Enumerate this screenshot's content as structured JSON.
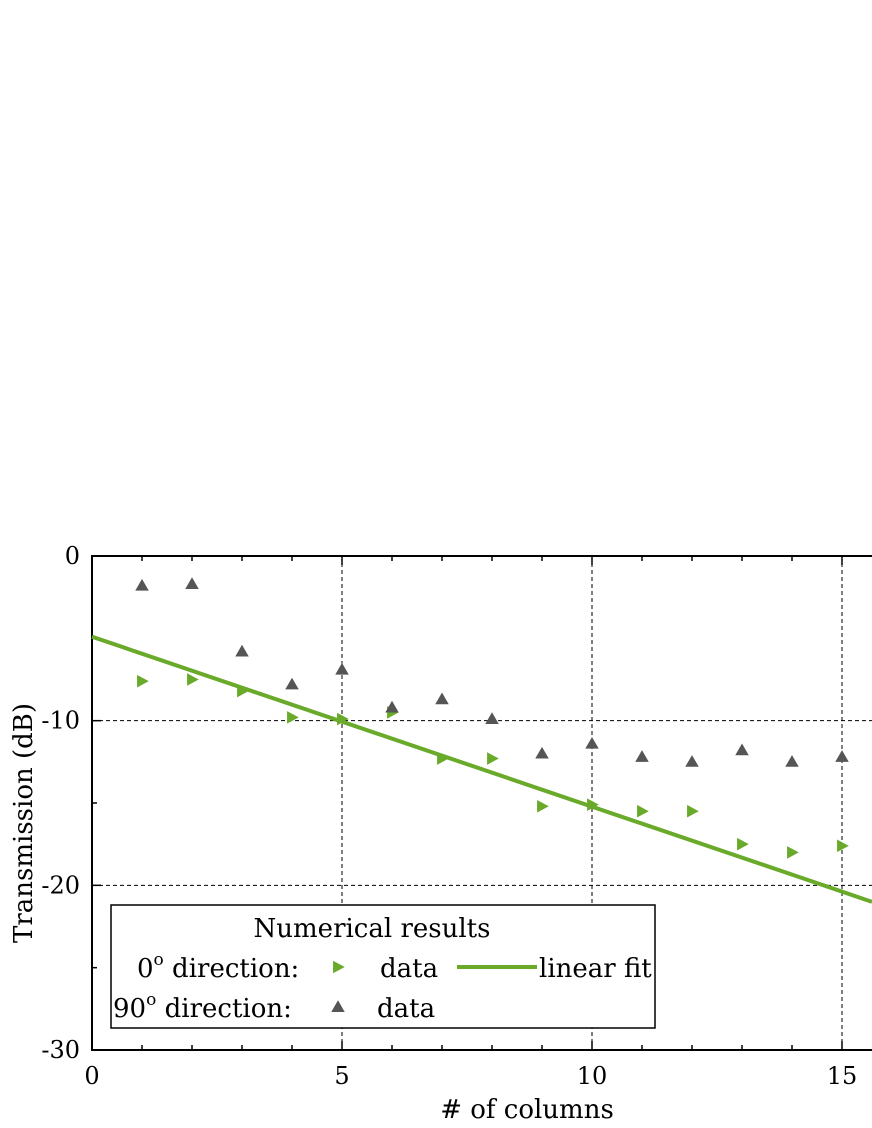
{
  "chart_data": {
    "type": "scatter",
    "xlabel": "# of columns",
    "ylabel": "Transmission (dB)",
    "xlim": [
      0,
      15.6
    ],
    "ylim": [
      -30,
      0
    ],
    "x_ticks": [
      0,
      5,
      10,
      15
    ],
    "y_ticks": [
      0,
      -10,
      -20,
      -30
    ],
    "grid": "dashed at major ticks",
    "series": [
      {
        "name": "0° direction data",
        "marker": "triangle-right",
        "color": "#6aaa2a",
        "x": [
          1,
          2,
          3,
          4,
          5,
          6,
          7,
          8,
          9,
          10,
          11,
          12,
          13,
          14,
          15
        ],
        "y": [
          -7.6,
          -7.5,
          -8.2,
          -9.8,
          -9.9,
          -9.5,
          -12.3,
          -12.3,
          -15.2,
          -15.1,
          -15.5,
          -15.5,
          -17.5,
          -18.0,
          -17.6
        ]
      },
      {
        "name": "90° direction data",
        "marker": "triangle-up",
        "color": "#555555",
        "x": [
          1,
          2,
          3,
          4,
          5,
          6,
          7,
          8,
          9,
          10,
          11,
          12,
          13,
          14,
          15
        ],
        "y": [
          -1.8,
          -1.7,
          -5.8,
          -7.8,
          -6.9,
          -9.2,
          -8.7,
          -9.9,
          -12.0,
          -11.4,
          -12.2,
          -12.5,
          -11.8,
          -12.5,
          -12.2
        ]
      },
      {
        "name": "0° direction linear fit",
        "type": "line",
        "color": "#6aaa2a",
        "x": [
          0,
          15.6
        ],
        "y": [
          -4.9,
          -21.0
        ]
      }
    ],
    "legend": {
      "position": "bottom-left",
      "title": "Numerical results",
      "row1_prefix": "0",
      "row1_sup": "o",
      "row1_suffix": " direction:",
      "row1_data": "data",
      "row1_fit": "linear fit",
      "row2_prefix": "90",
      "row2_sup": "o",
      "row2_suffix": " direction:",
      "row2_data": "data"
    }
  }
}
